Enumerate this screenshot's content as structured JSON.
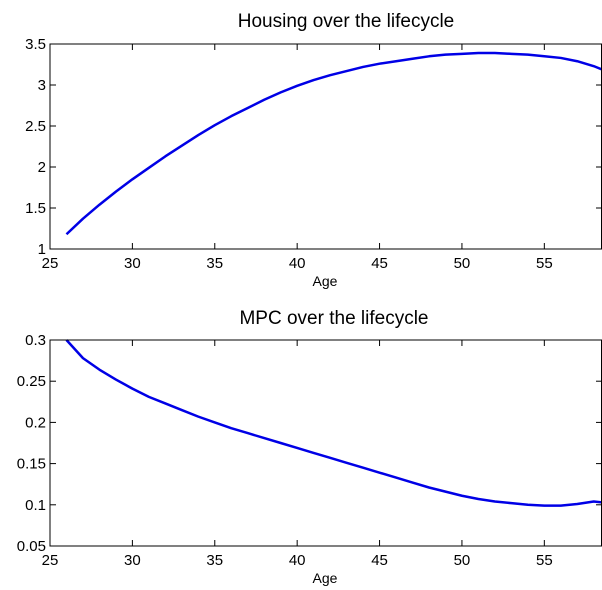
{
  "chart_data": [
    {
      "type": "line",
      "title": "Housing over the lifecycle",
      "xlabel": "Age",
      "ylabel": "",
      "xlim": [
        25,
        58.5
      ],
      "ylim": [
        1,
        3.5
      ],
      "xticks": [
        25,
        30,
        35,
        40,
        45,
        50,
        55
      ],
      "yticks": [
        1,
        1.5,
        2,
        2.5,
        3,
        3.5
      ],
      "ytick_labels": [
        "1",
        "1.5",
        "2",
        "2.5",
        "3",
        "3.5"
      ],
      "grid": false,
      "series": [
        {
          "color": "#0000e6",
          "x": [
            26,
            27,
            28,
            29,
            30,
            31,
            32,
            33,
            34,
            35,
            36,
            37,
            38,
            39,
            40,
            41,
            42,
            43,
            44,
            45,
            46,
            47,
            48,
            49,
            50,
            51,
            52,
            53,
            54,
            55,
            56,
            57,
            58,
            58.5
          ],
          "y": [
            1.18,
            1.37,
            1.54,
            1.7,
            1.85,
            1.99,
            2.13,
            2.26,
            2.39,
            2.51,
            2.62,
            2.72,
            2.82,
            2.91,
            2.99,
            3.06,
            3.12,
            3.17,
            3.22,
            3.26,
            3.29,
            3.32,
            3.35,
            3.37,
            3.38,
            3.39,
            3.39,
            3.38,
            3.37,
            3.35,
            3.33,
            3.29,
            3.23,
            3.19
          ]
        }
      ]
    },
    {
      "type": "line",
      "title": "MPC over the lifecycle",
      "xlabel": "Age",
      "ylabel": "",
      "xlim": [
        25,
        58.5
      ],
      "ylim": [
        0.05,
        0.3
      ],
      "xticks": [
        25,
        30,
        35,
        40,
        45,
        50,
        55
      ],
      "yticks": [
        0.05,
        0.1,
        0.15,
        0.2,
        0.25,
        0.3
      ],
      "ytick_labels": [
        "0.05",
        "0.1",
        "0.15",
        "0.2",
        "0.25",
        "0.3"
      ],
      "grid": false,
      "series": [
        {
          "color": "#0000e6",
          "x": [
            26,
            27,
            28,
            29,
            30,
            31,
            32,
            33,
            34,
            35,
            36,
            37,
            38,
            39,
            40,
            41,
            42,
            43,
            44,
            45,
            46,
            47,
            48,
            49,
            50,
            51,
            52,
            53,
            54,
            55,
            56,
            57,
            58,
            58.5
          ],
          "y": [
            0.3,
            0.278,
            0.264,
            0.252,
            0.241,
            0.231,
            0.223,
            0.215,
            0.207,
            0.2,
            0.193,
            0.187,
            0.181,
            0.175,
            0.169,
            0.163,
            0.157,
            0.151,
            0.145,
            0.139,
            0.133,
            0.127,
            0.121,
            0.116,
            0.111,
            0.107,
            0.104,
            0.102,
            0.1,
            0.099,
            0.099,
            0.101,
            0.104,
            0.103
          ]
        }
      ]
    }
  ]
}
